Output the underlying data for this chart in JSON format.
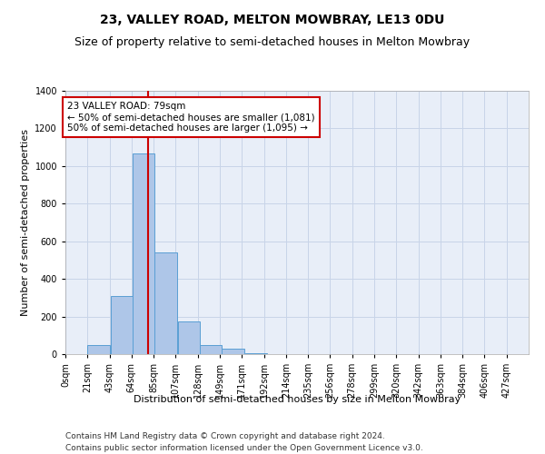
{
  "title": "23, VALLEY ROAD, MELTON MOWBRAY, LE13 0DU",
  "subtitle": "Size of property relative to semi-detached houses in Melton Mowbray",
  "xlabel": "Distribution of semi-detached houses by size in Melton Mowbray",
  "ylabel": "Number of semi-detached properties",
  "footnote1": "Contains HM Land Registry data © Crown copyright and database right 2024.",
  "footnote2": "Contains public sector information licensed under the Open Government Licence v3.0.",
  "property_label": "23 VALLEY ROAD: 79sqm",
  "smaller_count": 1081,
  "larger_count": 1095,
  "bar_left_edges": [
    0,
    21,
    43,
    64,
    85,
    107,
    128,
    149,
    171,
    192,
    214,
    235,
    256,
    278,
    299,
    320,
    342,
    363,
    384,
    406
  ],
  "bar_heights": [
    0,
    50,
    310,
    1065,
    540,
    175,
    50,
    30,
    5,
    0,
    0,
    0,
    0,
    0,
    0,
    0,
    0,
    0,
    0,
    0
  ],
  "bin_width": 21,
  "bar_color": "#aec6e8",
  "bar_edge_color": "#5a9fd4",
  "vline_x": 79,
  "vline_color": "#cc0000",
  "annotation_box_color": "#cc0000",
  "grid_color": "#c8d4e8",
  "background_color": "#e8eef8",
  "ylim": [
    0,
    1400
  ],
  "yticks": [
    0,
    200,
    400,
    600,
    800,
    1000,
    1200,
    1400
  ],
  "xlim": [
    0,
    441
  ],
  "xtick_labels": [
    "0sqm",
    "21sqm",
    "43sqm",
    "64sqm",
    "85sqm",
    "107sqm",
    "128sqm",
    "149sqm",
    "171sqm",
    "192sqm",
    "214sqm",
    "235sqm",
    "256sqm",
    "278sqm",
    "299sqm",
    "320sqm",
    "342sqm",
    "363sqm",
    "384sqm",
    "406sqm",
    "427sqm"
  ],
  "title_fontsize": 10,
  "subtitle_fontsize": 9,
  "axis_label_fontsize": 8,
  "tick_fontsize": 7,
  "annotation_fontsize": 7.5,
  "footnote_fontsize": 6.5
}
